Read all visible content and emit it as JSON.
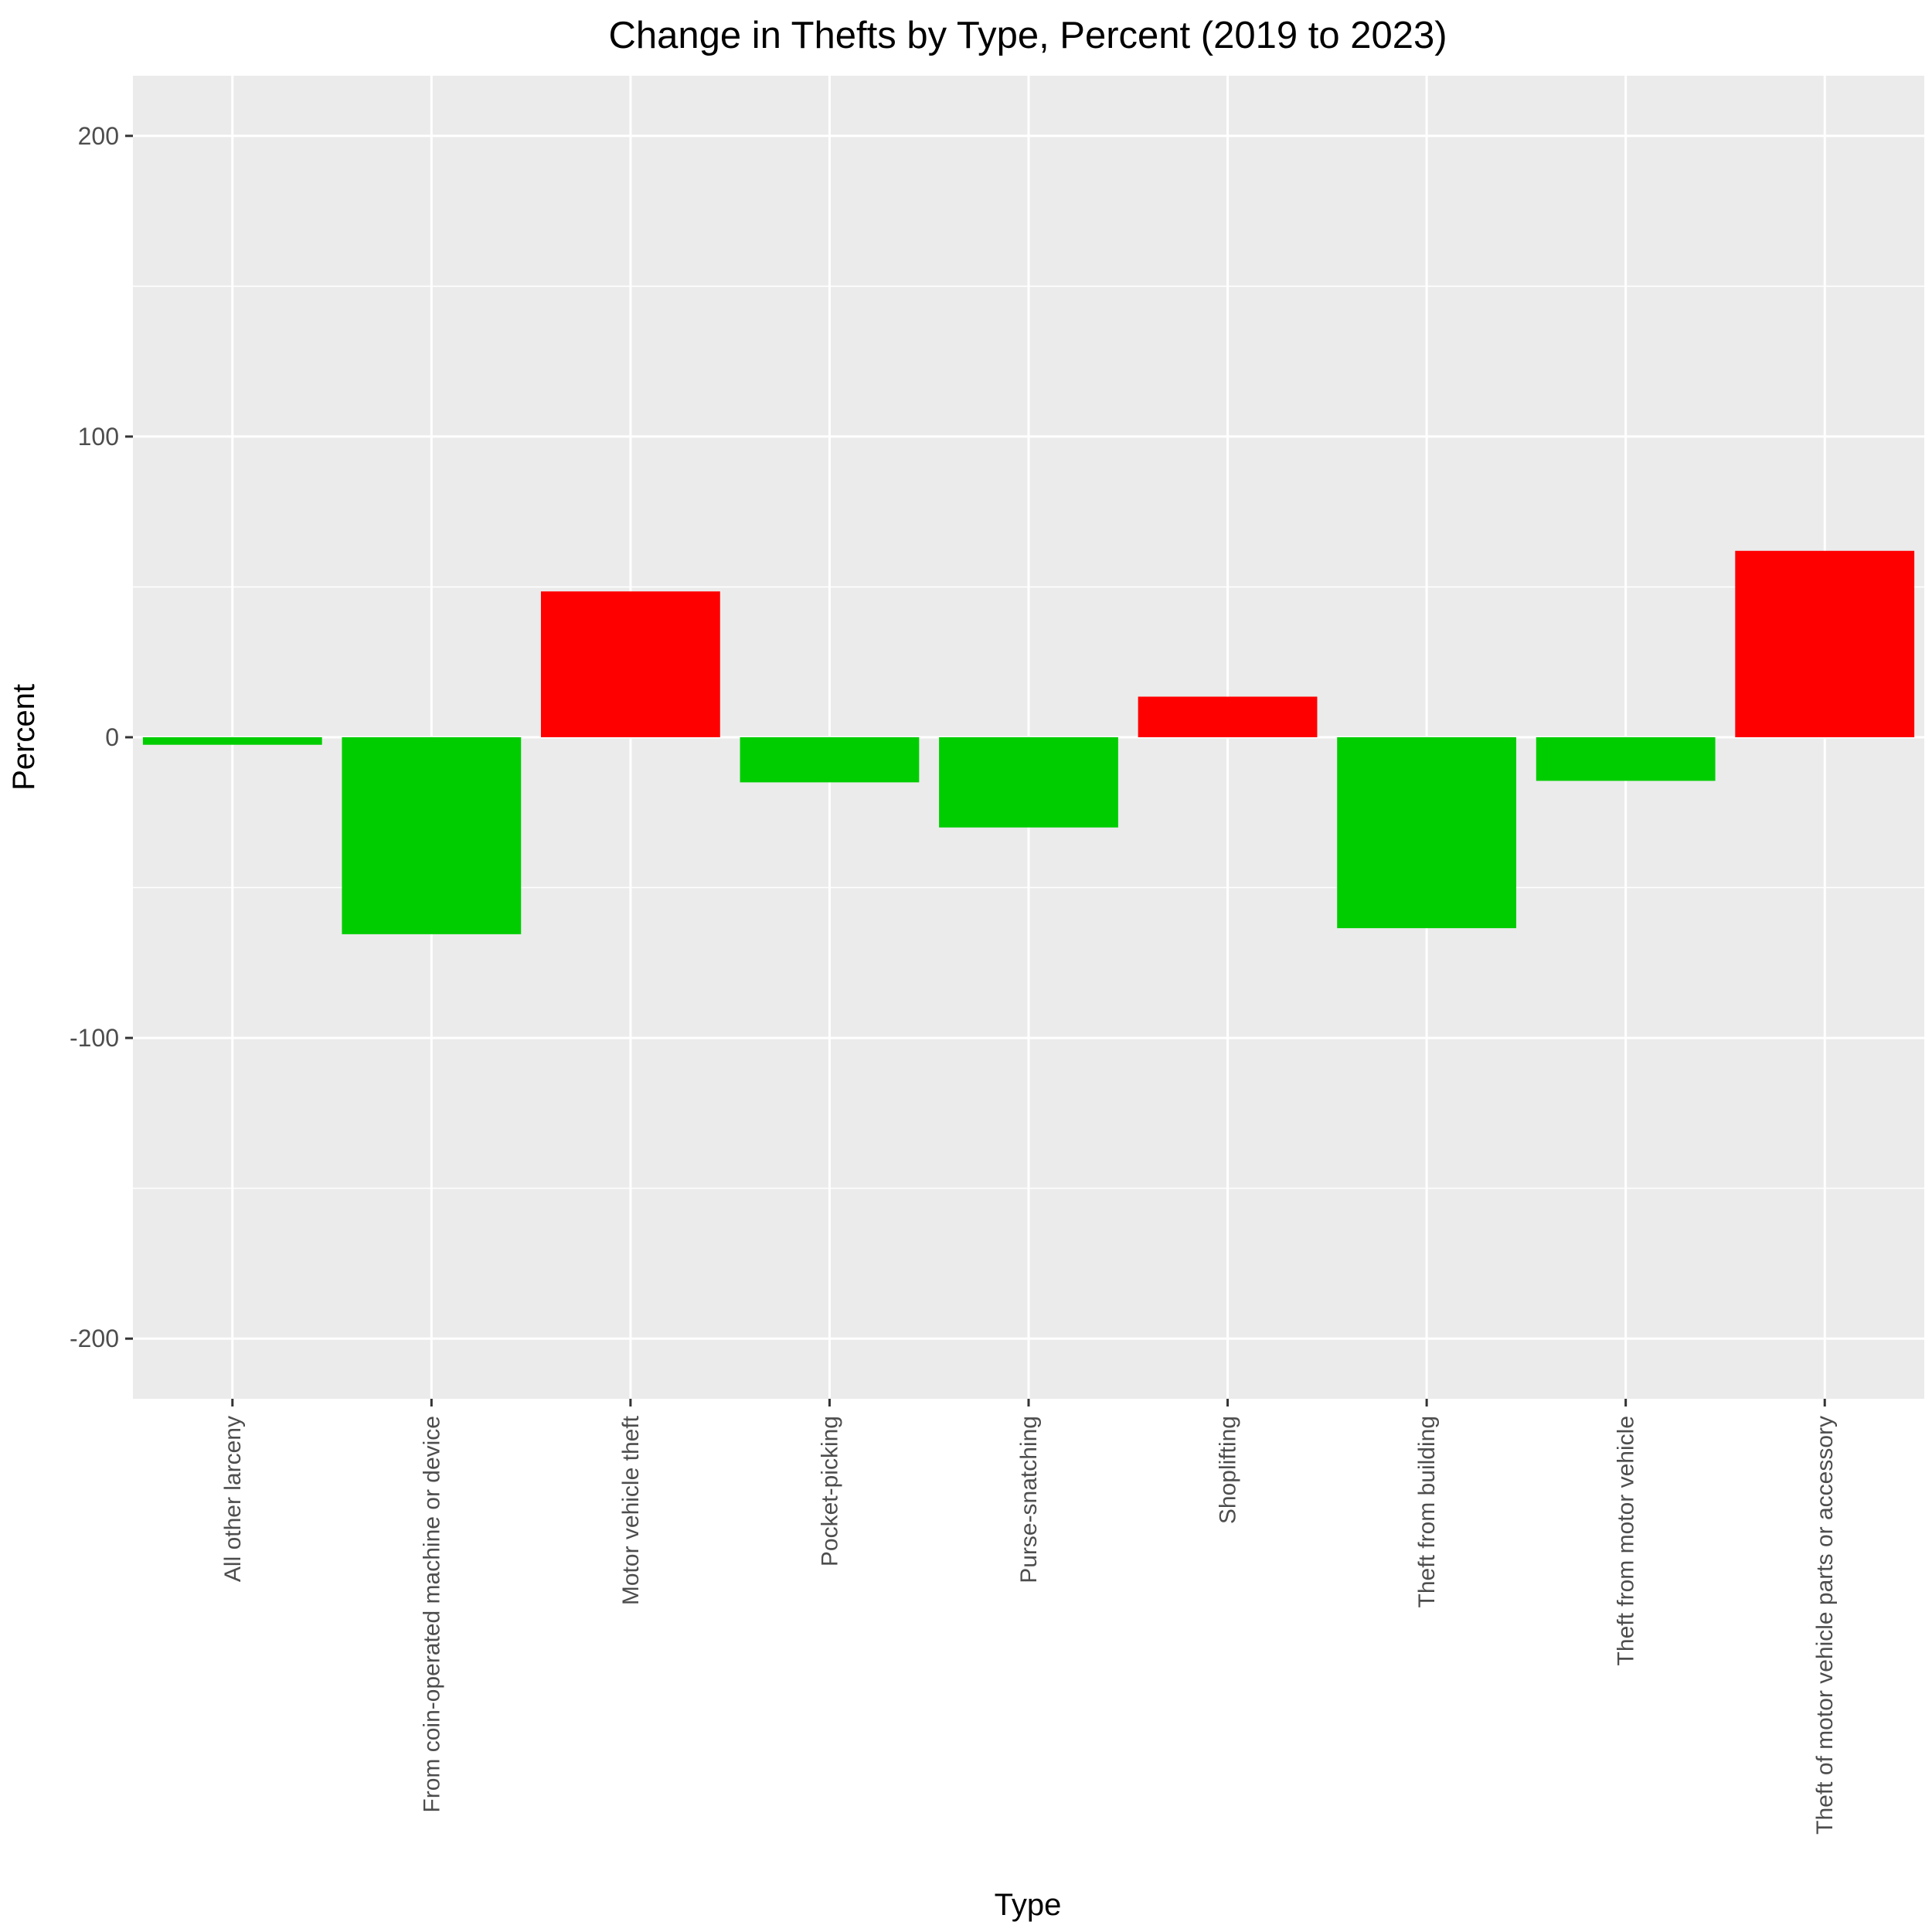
{
  "chart_data": {
    "type": "bar",
    "title": "Change in Thefts by Type, Percent (2019 to 2023)",
    "xlabel": "Type",
    "ylabel": "Percent",
    "categories": [
      "All other larceny",
      "From coin-operated machine or device",
      "Motor vehicle theft",
      "Pocket-picking",
      "Purse-snatching",
      "Shoplifting",
      "Theft from building",
      "Theft from motor vehicle",
      "Theft of motor vehicle parts or accessory"
    ],
    "values": [
      -2.5,
      -65.5,
      48.5,
      -15,
      -30,
      13.5,
      -63.5,
      -14.5,
      62
    ],
    "ylim": [
      -220,
      220
    ],
    "yticks": [
      -200,
      -100,
      0,
      100,
      200
    ],
    "ytick_labels": [
      "-200",
      "-100",
      "0",
      "100",
      "200"
    ],
    "colors": {
      "increase": "#ff0000",
      "decrease": "#00cd00",
      "panel": "#ebebeb",
      "grid": "#ffffff",
      "tick": "#333333"
    },
    "grid": true,
    "legend": "none"
  }
}
